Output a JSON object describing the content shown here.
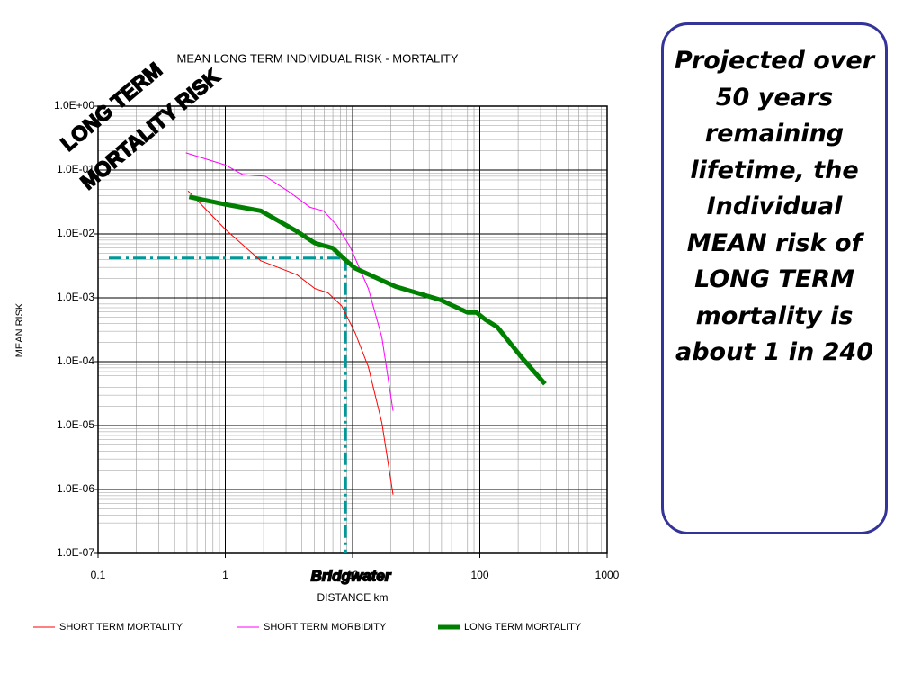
{
  "chart_data": {
    "type": "line",
    "title": "MEAN LONG TERM INDIVIDUAL RISK  -  MORTALITY",
    "x_label": "DISTANCE  km",
    "y_label": "MEAN RISK",
    "xscale": "log",
    "yscale": "log",
    "grid": true,
    "xlim": [
      0.1,
      1000
    ],
    "xticks": [
      0.1,
      1,
      10,
      100,
      1000
    ],
    "ylim": [
      1e-07,
      1
    ],
    "yticks": [
      {
        "value": 1,
        "label": "1.0E+00"
      },
      {
        "value": 0.1,
        "label": "1.0E-01"
      },
      {
        "value": 0.01,
        "label": "1.0E-02"
      },
      {
        "value": 0.001,
        "label": "1.0E-03"
      },
      {
        "value": 0.0001,
        "label": "1.0E-04"
      },
      {
        "value": 1e-05,
        "label": "1.0E-05"
      },
      {
        "value": 1e-06,
        "label": "1.0E-06"
      },
      {
        "value": 1e-07,
        "label": "1.0E-07"
      }
    ],
    "series": [
      {
        "name": "SHORT TERM MORTALITY",
        "color": "#ff0000",
        "width": 1,
        "x": [
          0.51,
          1,
          1.9,
          3.65,
          5.05,
          6.4,
          8.2,
          10.5,
          13.3,
          17,
          20.8
        ],
        "values": [
          0.047,
          0.0118,
          0.0038,
          0.0023,
          0.0014,
          0.0012,
          0.00075,
          0.00028,
          8.3e-05,
          1.1e-05,
          8.3e-07
        ]
      },
      {
        "name": "SHORT TERM MORBIDITY",
        "color": "#ff00ff",
        "width": 1,
        "x": [
          0.49,
          1,
          1.37,
          2.06,
          3.1,
          4.65,
          5.9,
          7.5,
          9.6,
          13.3,
          17,
          20.8
        ],
        "values": [
          0.186,
          0.12,
          0.085,
          0.08,
          0.047,
          0.026,
          0.023,
          0.0138,
          0.0062,
          0.0014,
          0.00024,
          1.7e-05
        ]
      },
      {
        "name": "LONG TERM MORTALITY",
        "color": "#008000",
        "width": 5,
        "x": [
          0.52,
          1,
          1.9,
          3.65,
          5.05,
          7,
          8.8,
          10.5,
          21.8,
          49,
          80,
          94,
          110,
          137,
          215,
          325
        ],
        "values": [
          0.038,
          0.029,
          0.023,
          0.011,
          0.0072,
          0.006,
          0.0039,
          0.0029,
          0.0015,
          0.00093,
          0.00059,
          0.00059,
          0.00046,
          0.00035,
          0.000114,
          4.47e-05
        ]
      }
    ],
    "reference_x": 8.8,
    "reference_y": 0.0042,
    "reference_color": "#009999",
    "annotations": [
      "LONG TERM",
      "MORTALITY RISK",
      "Bridgwater"
    ]
  },
  "note": "Projected over 50 years remaining lifetime, the Individual MEAN risk of LONG TERM mortality is about 1 in 240"
}
